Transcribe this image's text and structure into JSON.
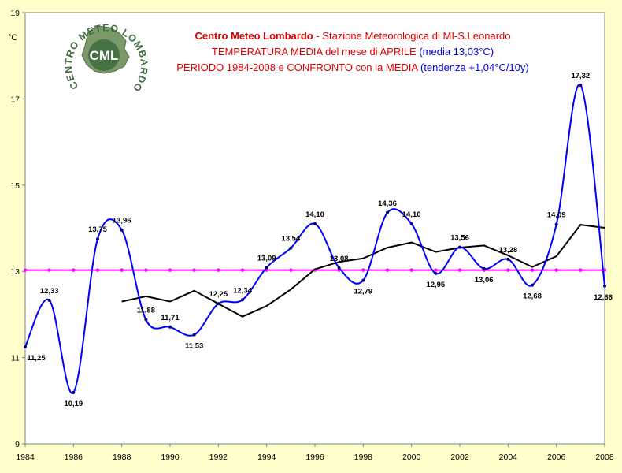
{
  "chart_data": {
    "type": "line",
    "title_bold": "Centro Meteo Lombardo",
    "title_rest": " - Stazione Meteorologica di MI-S.Leonardo",
    "subtitle_1_red": "TEMPERATURA MEDIA del mese di APRILE ",
    "subtitle_1_blue": "(media 13,03°C)",
    "subtitle_2_red": "PERIODO 1984-2008 e CONFRONTO con la MEDIA ",
    "subtitle_2_blue": "(tendenza +1,04°C/10y)",
    "ylabel": "°C",
    "logo_text": "CENTRO METEO LOMBARDO",
    "logo_abbr": "CML",
    "ylim": [
      9,
      19
    ],
    "xlim": [
      1984,
      2008
    ],
    "yticks": [
      "9",
      "11",
      "13",
      "15",
      "17",
      "19"
    ],
    "xticks": [
      "1984",
      "1986",
      "1988",
      "1990",
      "1992",
      "1994",
      "1996",
      "1998",
      "2000",
      "2002",
      "2004",
      "2006",
      "2008"
    ],
    "x": [
      1984,
      1985,
      1986,
      1987,
      1988,
      1989,
      1990,
      1991,
      1992,
      1993,
      1994,
      1995,
      1996,
      1997,
      1998,
      1999,
      2000,
      2001,
      2002,
      2003,
      2004,
      2005,
      2006,
      2007,
      2008
    ],
    "series": [
      {
        "values": [
          11.25,
          12.33,
          10.19,
          13.75,
          13.96,
          11.88,
          11.71,
          11.53,
          12.25,
          12.34,
          13.09,
          13.54,
          14.1,
          13.08,
          12.79,
          14.36,
          14.1,
          12.95,
          13.56,
          13.06,
          13.28,
          12.68,
          14.09,
          17.32,
          12.66
        ],
        "labels": [
          "11,25",
          "12,33",
          "10,19",
          "13,75",
          "13,96",
          "11,88",
          "11,71",
          "11,53",
          "12,25",
          "12,34",
          "13,09",
          "13,54",
          "14,10",
          "13,08",
          "12,79",
          "14,36",
          "14,10",
          "12,95",
          "13,56",
          "13,06",
          "13,28",
          "12,68",
          "14,09",
          "17,32",
          "12,66"
        ],
        "color": "#0000ff"
      },
      {
        "x": [
          1988,
          1989,
          1990,
          1991,
          1992,
          1993,
          1994,
          1995,
          1996,
          1997,
          1998,
          1999,
          2000,
          2001,
          2002,
          2003,
          2004,
          2005,
          2006,
          2007,
          2008
        ],
        "values": [
          12.3,
          12.42,
          12.3,
          12.55,
          12.25,
          11.95,
          12.2,
          12.58,
          13.05,
          13.22,
          13.3,
          13.55,
          13.67,
          13.45,
          13.55,
          13.6,
          13.37,
          13.1,
          13.35,
          14.08,
          14.01
        ],
        "color": "#000000"
      },
      {
        "values": [
          13.03,
          13.03,
          13.03,
          13.03,
          13.03,
          13.03,
          13.03,
          13.03,
          13.03,
          13.03,
          13.03,
          13.03,
          13.03,
          13.03,
          13.03,
          13.03,
          13.03,
          13.03,
          13.03,
          13.03,
          13.03,
          13.03,
          13.03,
          13.03,
          13.03
        ],
        "color": "#ff00ff"
      }
    ],
    "grid": false,
    "legend": "none"
  }
}
